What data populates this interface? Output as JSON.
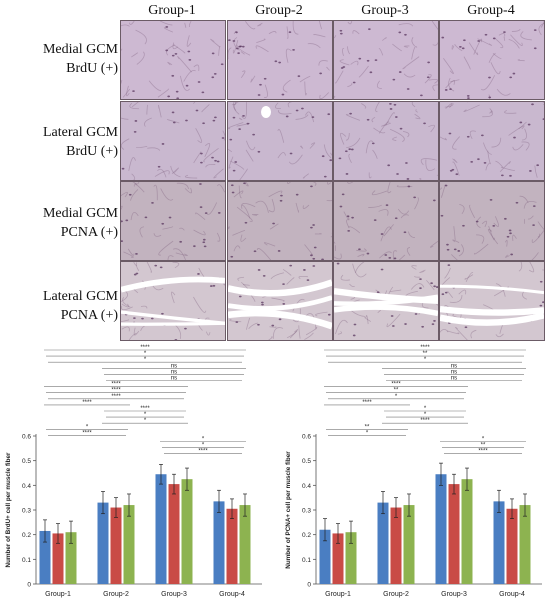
{
  "figure": {
    "columns": [
      "Group-1",
      "Group-2",
      "Group-3",
      "Group-4"
    ],
    "rows": [
      {
        "line1": "Medial GCM",
        "line2": "BrdU (+)"
      },
      {
        "line1": "Lateral GCM",
        "line2": "BrdU (+)"
      },
      {
        "line1": "Medial GCM",
        "line2": "PCNA (+)"
      },
      {
        "line1": "Lateral GCM",
        "line2": "PCNA (+)"
      }
    ],
    "tile_colors": [
      "#cdb9d2",
      "#c9b8cf",
      "#c2b3bf",
      "#d3c7d0"
    ]
  },
  "chart_data": [
    {
      "type": "bar",
      "ylabel": "Number of BrdU+ cell per muscle fiber",
      "categories": [
        "Group-1",
        "Group-2",
        "Group-3",
        "Group-4"
      ],
      "ylim": [
        0,
        0.6
      ],
      "yticks": [
        "0",
        "0.1",
        "0.2",
        "0.3",
        "0.4",
        "0.5",
        "0.6"
      ],
      "series": [
        {
          "color": "#4a7ec2",
          "values": [
            0.215,
            0.33,
            0.445,
            0.335
          ],
          "errors": [
            0.045,
            0.045,
            0.04,
            0.045
          ]
        },
        {
          "color": "#c94b46",
          "values": [
            0.205,
            0.31,
            0.405,
            0.305
          ],
          "errors": [
            0.04,
            0.04,
            0.04,
            0.04
          ]
        },
        {
          "color": "#8db350",
          "values": [
            0.21,
            0.32,
            0.425,
            0.32
          ],
          "errors": [
            0.045,
            0.045,
            0.045,
            0.045
          ]
        }
      ],
      "significance": [
        "****",
        "*",
        "*",
        "ns",
        "ns",
        "ns",
        "****",
        "****",
        "****",
        "****",
        "****",
        "*",
        "*",
        "*",
        "****",
        "*",
        "*",
        "****"
      ]
    },
    {
      "type": "bar",
      "ylabel": "Number of PCNA+ cell per muscle fiber",
      "categories": [
        "Group-1",
        "Group-2",
        "Group-3",
        "Group-4"
      ],
      "ylim": [
        0,
        0.6
      ],
      "yticks": [
        "0",
        "0.1",
        "0.2",
        "0.3",
        "0.4",
        "0.5",
        "0.6"
      ],
      "series": [
        {
          "color": "#4a7ec2",
          "values": [
            0.22,
            0.33,
            0.445,
            0.335
          ],
          "errors": [
            0.045,
            0.045,
            0.045,
            0.045
          ]
        },
        {
          "color": "#c94b46",
          "values": [
            0.205,
            0.31,
            0.405,
            0.305
          ],
          "errors": [
            0.04,
            0.04,
            0.04,
            0.04
          ]
        },
        {
          "color": "#8db350",
          "values": [
            0.21,
            0.32,
            0.425,
            0.32
          ],
          "errors": [
            0.045,
            0.045,
            0.045,
            0.045
          ]
        }
      ],
      "significance": [
        "****",
        "**",
        "*",
        "ns",
        "ns",
        "ns",
        "****",
        "**",
        "*",
        "****",
        "*",
        "*",
        "****",
        "**",
        "*",
        "*",
        "**",
        "****"
      ]
    }
  ]
}
